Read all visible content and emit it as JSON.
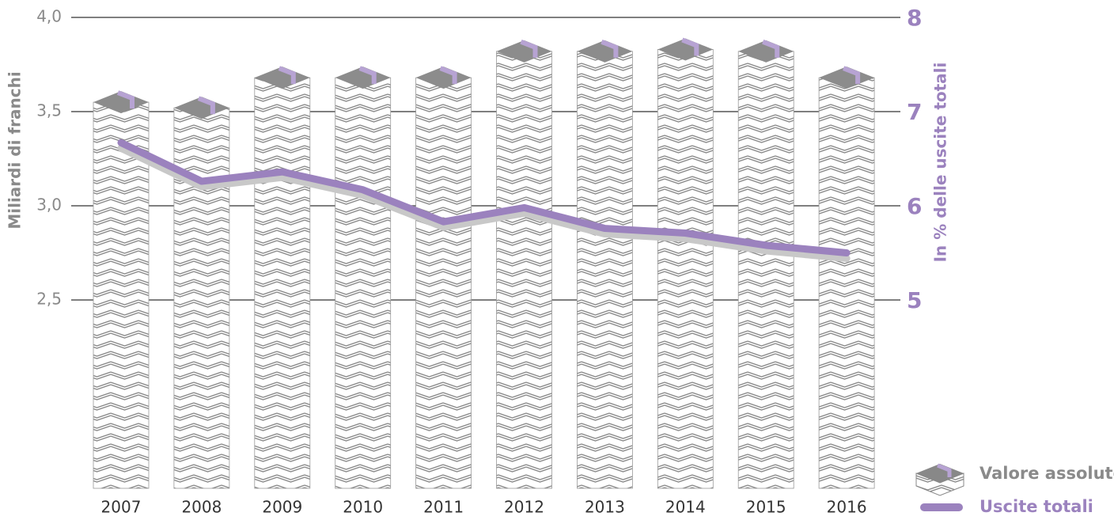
{
  "chart_data": {
    "type": "bar",
    "y_label": "Miliardi di franchi",
    "y2_label": "In % delle uscite totali",
    "categories": [
      "2007",
      "2008",
      "2009",
      "2010",
      "2011",
      "2012",
      "2013",
      "2014",
      "2015",
      "2016"
    ],
    "series": [
      {
        "name": "Valore assoluto",
        "color": "#8c8c8c",
        "values": [
          3.55,
          3.52,
          3.68,
          3.68,
          3.68,
          3.82,
          3.82,
          3.83,
          3.82,
          3.68
        ]
      },
      {
        "name": "Uscite totali",
        "color": "#9b82be",
        "type": "line",
        "axis": "y2",
        "values": [
          6.67,
          6.26,
          6.36,
          6.17,
          5.83,
          5.98,
          5.76,
          5.71,
          5.58,
          5.5
        ]
      }
    ],
    "ylim": [
      1.5,
      4.0
    ],
    "yticks": [
      {
        "value": 2.5,
        "label": "2,5"
      },
      {
        "value": 3.0,
        "label": "3,0"
      },
      {
        "value": 3.5,
        "label": "3,5"
      },
      {
        "value": 4.0,
        "label": "4,0"
      }
    ],
    "y2lim": [
      3,
      8
    ],
    "y2ticks": [
      5,
      6,
      7,
      8
    ],
    "grid": true
  }
}
